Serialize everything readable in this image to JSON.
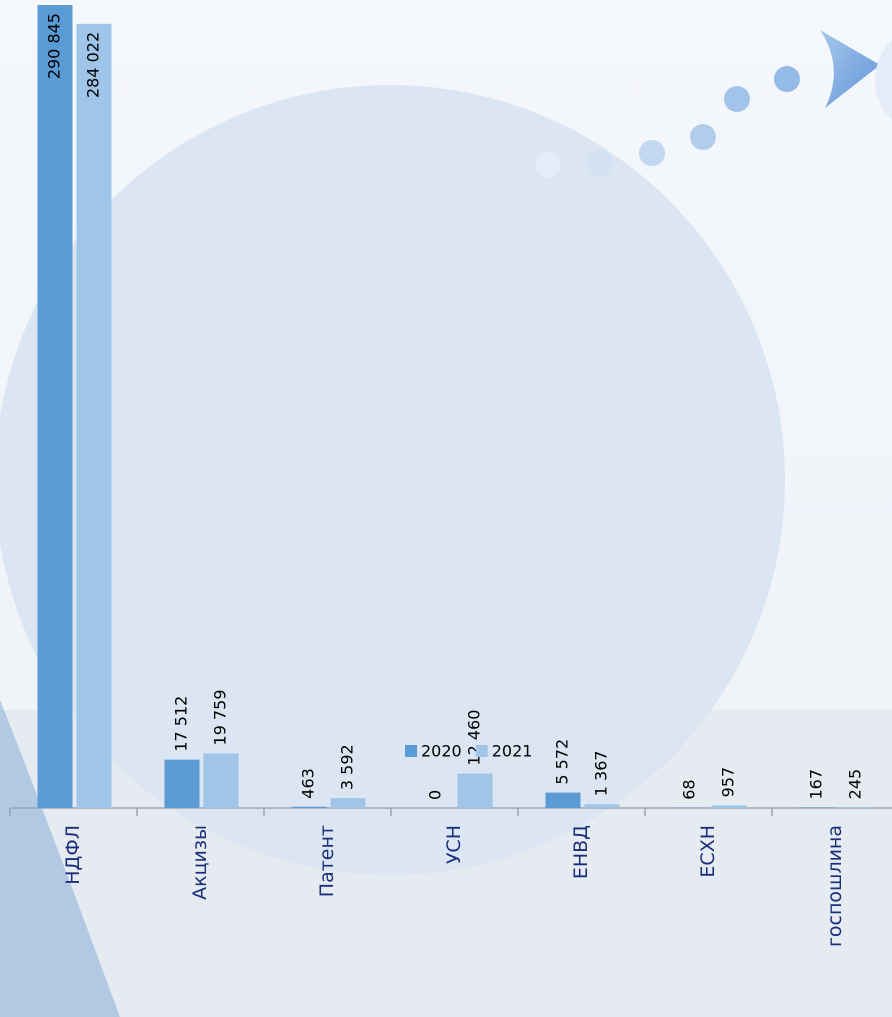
{
  "chart_data": {
    "type": "bar",
    "categories": [
      "НДФЛ",
      "Акцизы",
      "Патент",
      "УСН",
      "ЕНВД",
      "ЕСХН",
      "госпошлина"
    ],
    "series": [
      {
        "name": "2020",
        "color": "#5b9bd5",
        "values": [
          290845,
          17512,
          463,
          0,
          5572,
          68,
          167
        ],
        "value_labels": [
          "290 845",
          "17 512",
          "463",
          "0",
          "5 572",
          "68",
          "167"
        ]
      },
      {
        "name": "2021",
        "color": "#9fc5e8",
        "values": [
          284022,
          19759,
          3592,
          12460,
          1367,
          957,
          245
        ],
        "value_labels": [
          "284 022",
          "19 759",
          "3 592",
          "12 460",
          "1 367",
          "957",
          "245"
        ]
      }
    ],
    "legend": "bottom"
  }
}
